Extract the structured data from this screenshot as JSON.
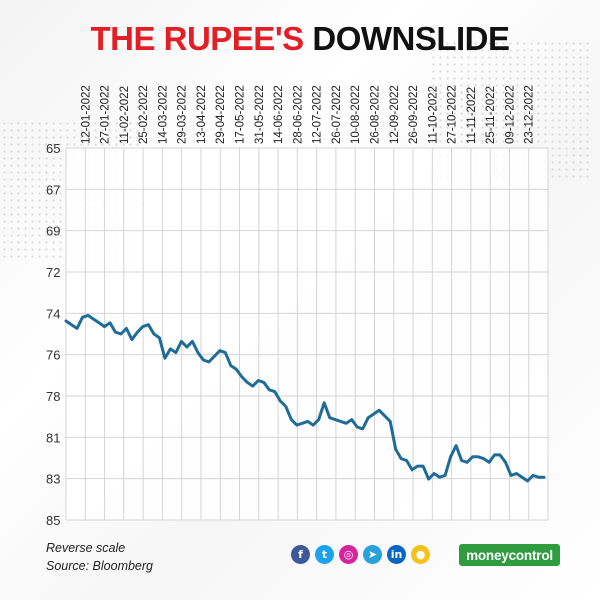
{
  "title": {
    "part1": "THE RUPEE'S",
    "part2": "DOWNSLIDE"
  },
  "colors": {
    "title_red": "#e31f26",
    "line": "#1f6c98",
    "grid": "#d4d4d4"
  },
  "notes": {
    "reverse_scale": "Reverse scale",
    "source": "Source: Bloomberg"
  },
  "social_icons": [
    {
      "name": "facebook-icon",
      "glyph": "f",
      "color": "#3b5998"
    },
    {
      "name": "twitter-icon",
      "glyph": "t",
      "color": "#1da1f2"
    },
    {
      "name": "instagram-icon",
      "glyph": "◎",
      "color": "#d6249f"
    },
    {
      "name": "telegram-icon",
      "glyph": "➤",
      "color": "#2aa1da"
    },
    {
      "name": "linkedin-icon",
      "glyph": "in",
      "color": "#0a66c2"
    },
    {
      "name": "koo-icon",
      "glyph": "●",
      "color": "#f4c21b"
    }
  ],
  "brand": {
    "text": "moneycontrol"
  },
  "chart_data": {
    "type": "line",
    "title": "THE RUPEE'S DOWNSLIDE",
    "reverse_scale": true,
    "x_tick_labels": [
      "12-01-2022",
      "27-01-2022",
      "11-02-2022",
      "25-02-2022",
      "14-03-2022",
      "29-03-2022",
      "13-04-2022",
      "29-04-2022",
      "17-05-2022",
      "31-05-2022",
      "14-06-2022",
      "28-06-2022",
      "12-07-2022",
      "26-07-2022",
      "10-08-2022",
      "26-08-2022",
      "12-09-2022",
      "26-09-2022",
      "11-10-2022",
      "27-10-2022",
      "11-11-2022",
      "25-11-2022",
      "09-12-2022",
      "23-12-2022"
    ],
    "y_tick_labels": [
      "65",
      "67",
      "69",
      "72",
      "74",
      "76",
      "78",
      "81",
      "83",
      "85"
    ],
    "ylim": [
      85,
      65
    ],
    "grid": true,
    "series": [
      {
        "values": [
          74.3,
          74.5,
          74.7,
          74.1,
          74.0,
          74.2,
          74.4,
          74.6,
          74.4,
          74.9,
          75.0,
          74.7,
          75.3,
          74.9,
          74.6,
          74.5,
          75.0,
          75.2,
          76.3,
          75.8,
          76.0,
          75.4,
          75.7,
          75.4,
          76.0,
          76.4,
          76.5,
          76.2,
          75.9,
          76.0,
          76.7,
          76.9,
          77.3,
          77.6,
          77.8,
          77.5,
          77.6,
          78.0,
          78.1,
          78.6,
          78.9,
          79.6,
          79.9,
          79.8,
          79.7,
          79.9,
          79.6,
          78.7,
          79.5,
          79.6,
          79.7,
          79.8,
          79.6,
          80.0,
          80.1,
          79.5,
          79.3,
          79.1,
          79.4,
          79.7,
          81.2,
          81.7,
          81.8,
          82.3,
          82.1,
          82.1,
          82.8,
          82.5,
          82.7,
          82.6,
          81.6,
          81.0,
          81.8,
          81.9,
          81.6,
          81.6,
          81.7,
          81.9,
          81.5,
          81.5,
          81.9,
          82.6,
          82.5,
          82.7,
          82.9,
          82.6,
          82.7,
          82.7
        ]
      }
    ]
  }
}
